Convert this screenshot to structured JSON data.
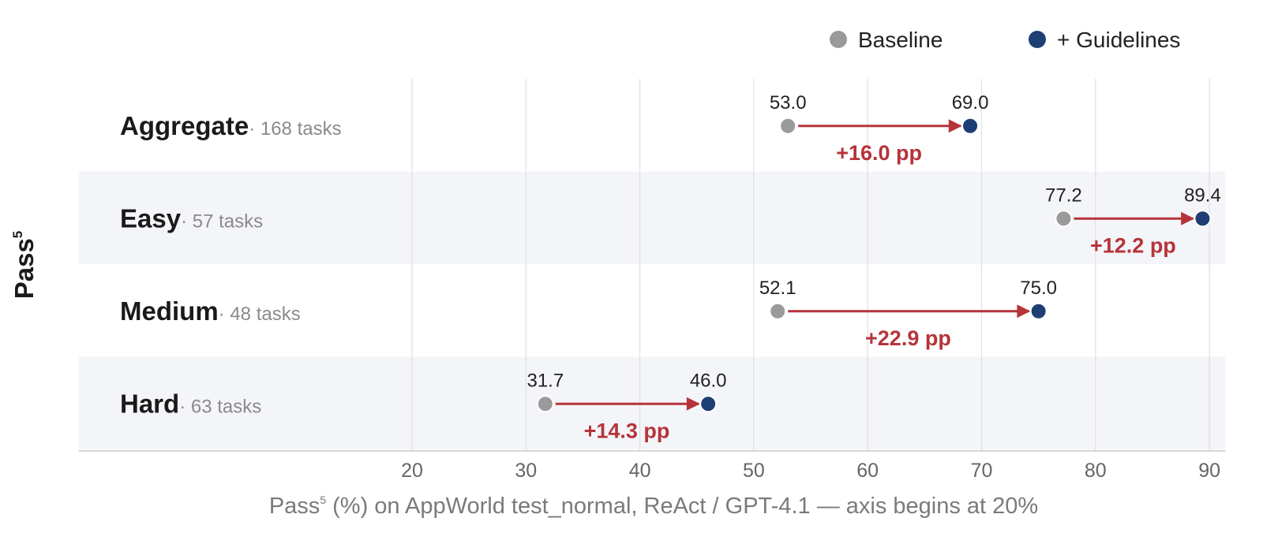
{
  "chart_data": {
    "type": "dumbbell",
    "ylabel": "Pass",
    "ylabel_superscript": "5",
    "xlabel": {
      "prefix": "Pass",
      "superscript": "5",
      "suffix": " (%) on AppWorld test_normal, ReAct / GPT-4.1 — axis begins at 20%"
    },
    "xlim": [
      20,
      93
    ],
    "x_ticks": [
      20,
      30,
      40,
      50,
      60,
      70,
      80,
      90
    ],
    "legend": {
      "position": "top-right",
      "items": [
        {
          "label": "Baseline",
          "color": "#9a9a9a"
        },
        {
          "label": "+ Guidelines",
          "color": "#1e3f74"
        }
      ]
    },
    "series": [
      {
        "name": "Baseline"
      },
      {
        "name": "+ Guidelines"
      }
    ],
    "rows": [
      {
        "label": "Aggregate",
        "tasks": "· 168 tasks",
        "baseline": 53.0,
        "guidelines": 69.0,
        "baseline_label": "53.0",
        "guidelines_label": "69.0",
        "delta_label": "+16.0 pp",
        "shaded": false
      },
      {
        "label": "Easy",
        "tasks": "· 57 tasks",
        "baseline": 77.2,
        "guidelines": 89.4,
        "baseline_label": "77.2",
        "guidelines_label": "89.4",
        "delta_label": "+12.2 pp",
        "shaded": true
      },
      {
        "label": "Medium",
        "tasks": "· 48 tasks",
        "baseline": 52.1,
        "guidelines": 75.0,
        "baseline_label": "52.1",
        "guidelines_label": "75.0",
        "delta_label": "+22.9 pp",
        "shaded": false
      },
      {
        "label": "Hard",
        "tasks": "· 63 tasks",
        "baseline": 31.7,
        "guidelines": 46.0,
        "baseline_label": "31.7",
        "guidelines_label": "46.0",
        "delta_label": "+14.3 pp",
        "shaded": true
      }
    ],
    "colors": {
      "baseline": "#9a9a9a",
      "guidelines": "#1e3f74",
      "arrow": "#b5343a",
      "band": "#f4f5f8",
      "grid": "#e0e0e0",
      "axis": "#c8c8c8",
      "tick_text": "#666666",
      "value_text": "#222222",
      "category_text": "#1a1a1a",
      "tasks_text": "#8a8a8a"
    }
  }
}
